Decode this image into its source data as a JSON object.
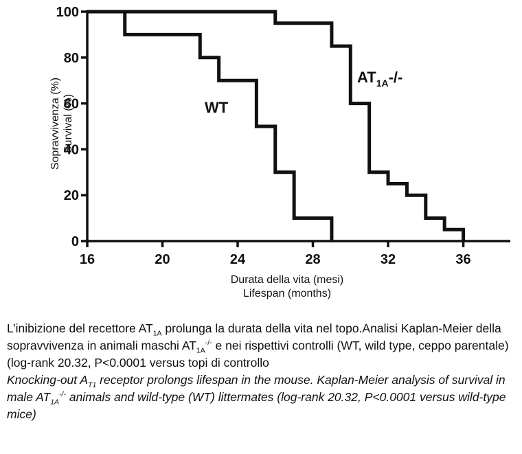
{
  "chart_data": {
    "type": "line",
    "step": true,
    "x_ticks": [
      16,
      20,
      24,
      28,
      32,
      36
    ],
    "y_ticks": [
      0,
      20,
      40,
      60,
      80,
      100
    ],
    "xlim": [
      16,
      38.5
    ],
    "ylim": [
      0,
      100
    ],
    "ylabel_lines": [
      "Sopravvivenza (%)",
      "Survival (%)"
    ],
    "xlabel_lines": [
      "Durata della vita (mesi)",
      "Lifespan (months)"
    ],
    "series": [
      {
        "name": "WT",
        "x": [
          16,
          18,
          22,
          23,
          25,
          26,
          27,
          29
        ],
        "y": [
          100,
          90,
          80,
          70,
          50,
          30,
          10,
          0
        ]
      },
      {
        "name_main": "AT",
        "name_sub": "1A",
        "name_suffix": "-/-",
        "x": [
          16,
          26,
          29,
          30,
          31,
          32,
          33,
          34,
          35,
          36
        ],
        "y": [
          100,
          95,
          85,
          60,
          30,
          25,
          20,
          10,
          5,
          0
        ]
      }
    ]
  },
  "caption": {
    "it": {
      "t1": "L’inibizione del recettore AT",
      "sub1": "1A",
      "t2": " prolunga la durata della vita nel topo.Analisi Kaplan-Meier della sopravvivenza in animali maschi AT",
      "sub2": "1A",
      "sup2": "-/-",
      "t3": " e nei rispettivi controlli (WT, wild type, ceppo parentale)(log-rank 20.32, P<0.0001 versus topi di controllo"
    },
    "en": {
      "t1": "Knocking-out A",
      "sub1": "T1",
      "t2": " receptor prolongs lifespan in the mouse. Kaplan-Meier analysis of survival in male AT",
      "sub2": "1A",
      "sup2": "-/-",
      "t3": " animals and wild-type (WT) littermates (log-rank 20.32, P<0.0001 versus wild-type mice)"
    }
  }
}
